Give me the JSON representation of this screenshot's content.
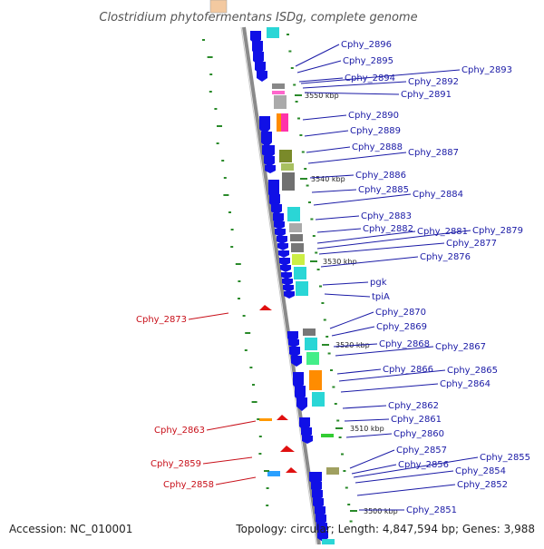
{
  "title": "Clostridium phytofermentans ISDg, complete genome",
  "footer": {
    "accession": "Accession: NC_010001",
    "topology": "Topology: circular; Length: 4,847,594 bp; Genes: 3,988"
  },
  "colors": {
    "backbone": "#8a8a8a",
    "forward_gene": "#1010e6",
    "label_blue": "#1a1aa6",
    "label_red": "#c8101a",
    "reverse_gene": "#e01010",
    "tick_green": "#2a8a2a"
  },
  "kbp_markers": [
    "3550 kbp",
    "3540 kbp",
    "3530 kbp",
    "3520 kbp",
    "3510 kbp",
    "3500 kbp"
  ],
  "labels_right": [
    "Cphy_2896",
    "Cphy_2895",
    "Cphy_2894",
    "Cphy_2893",
    "Cphy_2892",
    "Cphy_2891",
    "Cphy_2890",
    "Cphy_2889",
    "Cphy_2888",
    "Cphy_2887",
    "Cphy_2886",
    "Cphy_2885",
    "Cphy_2884",
    "Cphy_2883",
    "Cphy_2882",
    "Cphy_2881",
    "Cphy_2879",
    "Cphy_2877",
    "Cphy_2876",
    "pgk",
    "tpiA",
    "Cphy_2870",
    "Cphy_2869",
    "Cphy_2868",
    "Cphy_2867",
    "Cphy_2866",
    "Cphy_2865",
    "Cphy_2864",
    "Cphy_2862",
    "Cphy_2861",
    "Cphy_2860",
    "Cphy_2857",
    "Cphy_2856",
    "Cphy_2855",
    "Cphy_2854",
    "Cphy_2852",
    "Cphy_2851"
  ],
  "labels_left": [
    "Cphy_2873",
    "Cphy_2863",
    "Cphy_2859",
    "Cphy_2858"
  ]
}
